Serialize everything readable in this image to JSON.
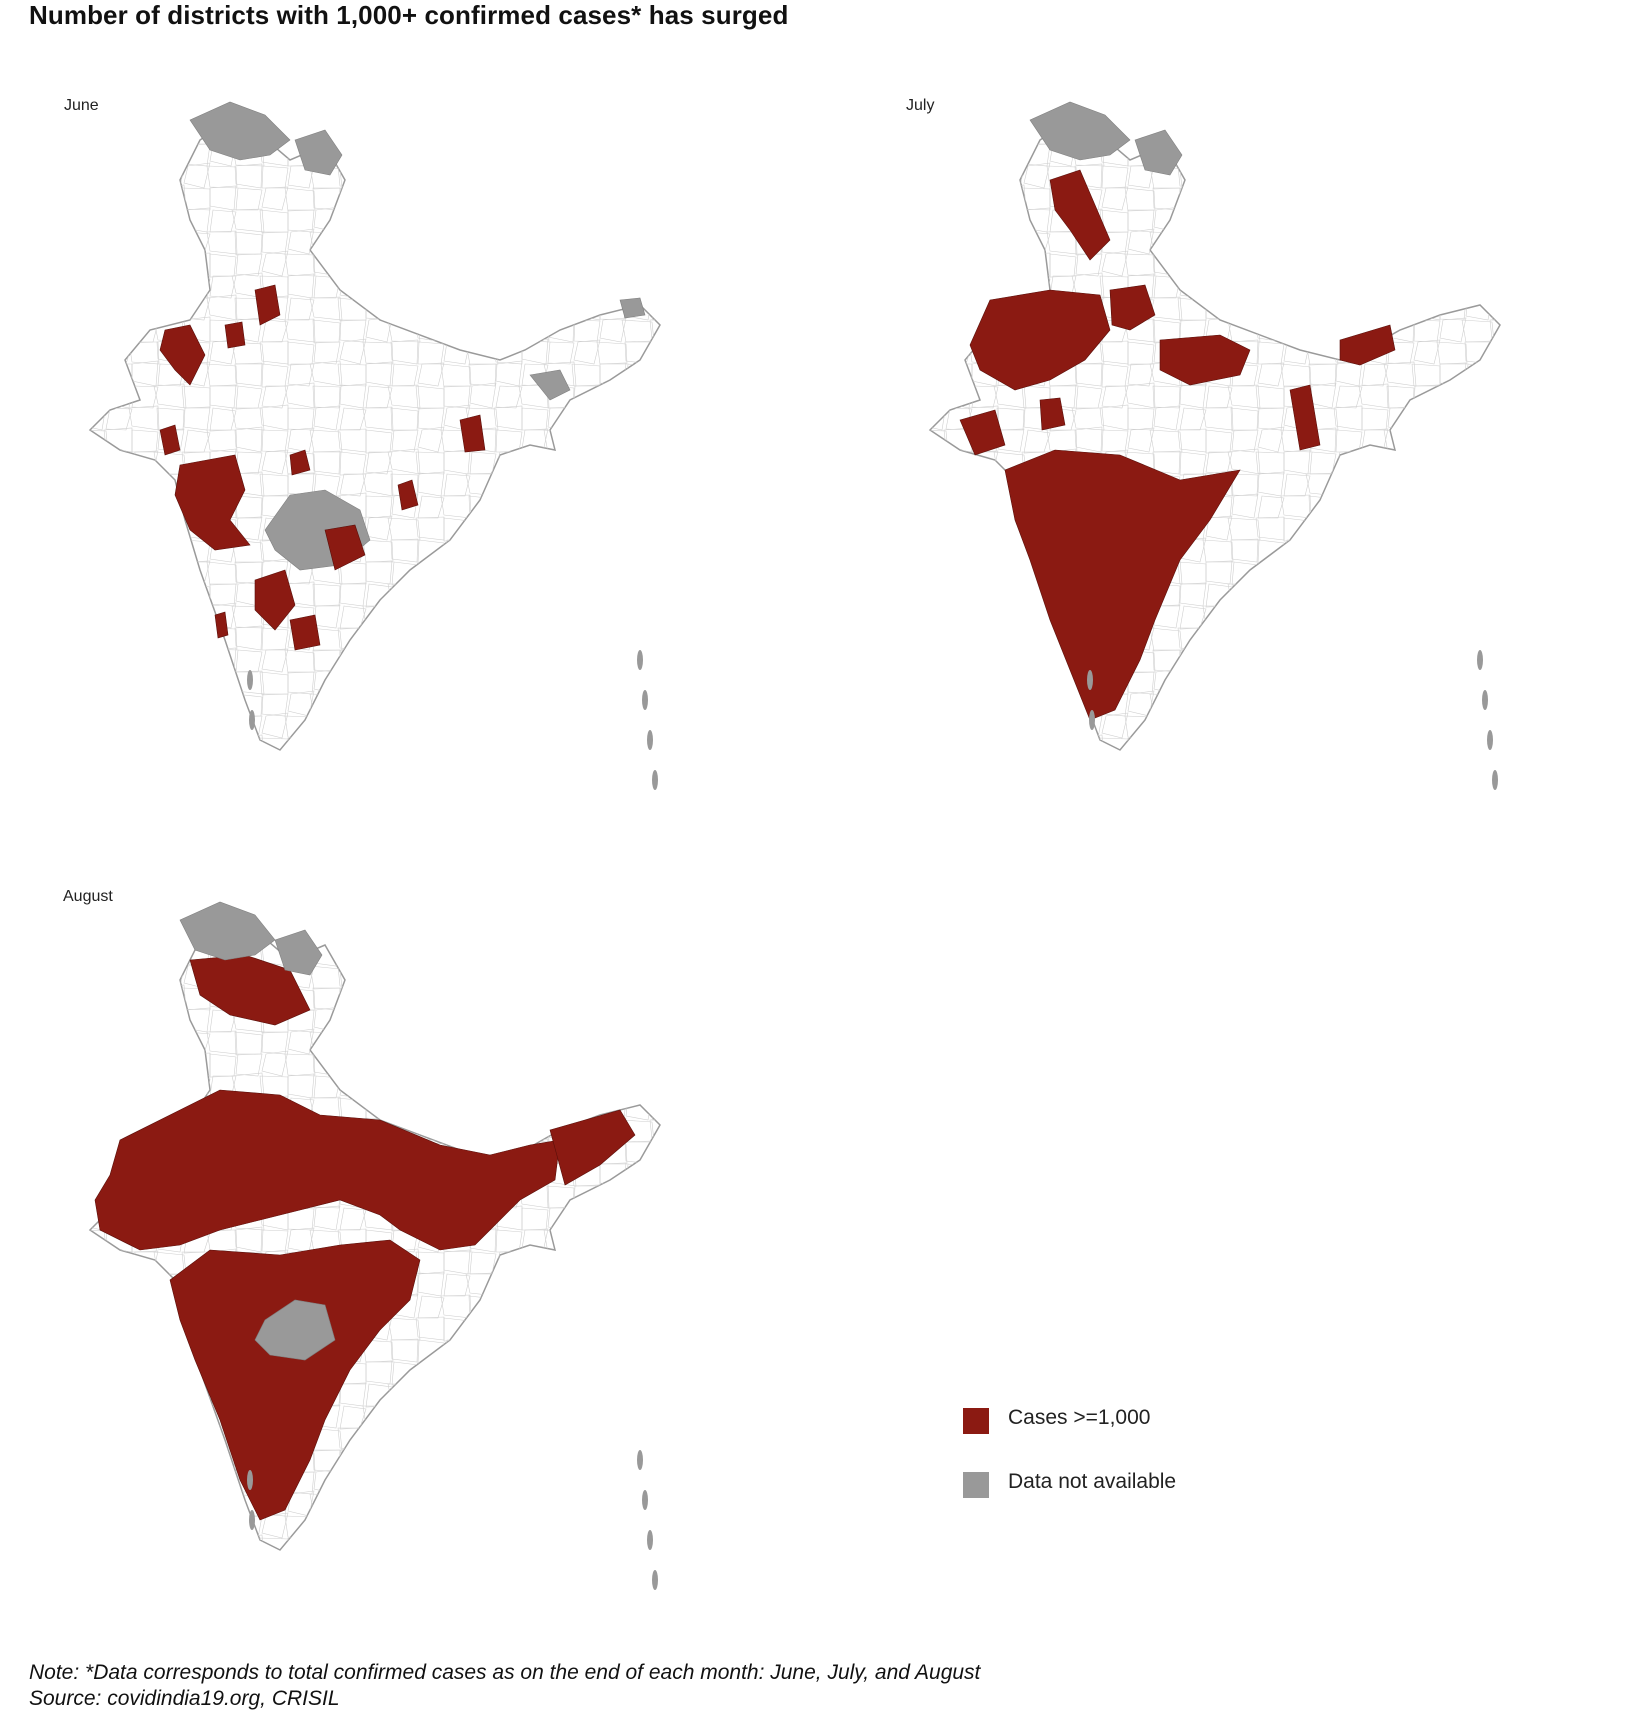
{
  "title": "Number of districts with 1,000+ confirmed cases* has surged",
  "panels": [
    {
      "label": "June"
    },
    {
      "label": "July"
    },
    {
      "label": "August"
    }
  ],
  "legend": [
    {
      "label": "Cases >=1,000",
      "color": "#8b1a12"
    },
    {
      "label": "Data not available",
      "color": "#999999"
    }
  ],
  "note": "Note: *Data corresponds to total confirmed cases as on the end of each month: June, July, and August",
  "source": "Source: covidindia19.org, CRISIL",
  "colors": {
    "cases": "#8b1a12",
    "na": "#999999",
    "outline": "#9a9a9a",
    "fill": "#ffffff"
  }
}
